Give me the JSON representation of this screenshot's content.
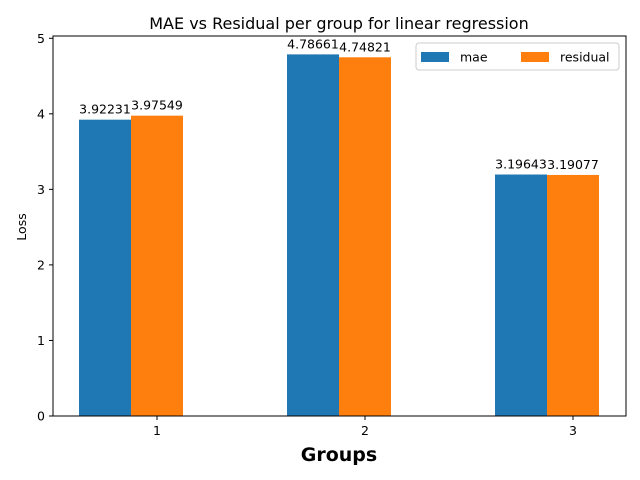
{
  "chart_data": {
    "type": "bar",
    "title": "MAE vs Residual per group  for linear regression",
    "xlabel": "Groups",
    "ylabel": "Loss",
    "categories": [
      "1",
      "2",
      "3"
    ],
    "series": [
      {
        "name": "mae",
        "color": "#1f77b4",
        "values": [
          3.92231,
          4.78661,
          3.19643
        ],
        "labels": [
          "3.92231",
          "4.78661",
          "3.19643"
        ]
      },
      {
        "name": "residual",
        "color": "#ff7f0e",
        "values": [
          3.97549,
          4.74821,
          3.19077
        ],
        "labels": [
          "3.97549",
          "4.74821",
          "3.19077"
        ]
      }
    ],
    "ylim": [
      0,
      5.03
    ],
    "yticks": [
      0,
      1,
      2,
      3,
      4,
      5
    ],
    "grid": false,
    "legend": "upper-right"
  }
}
